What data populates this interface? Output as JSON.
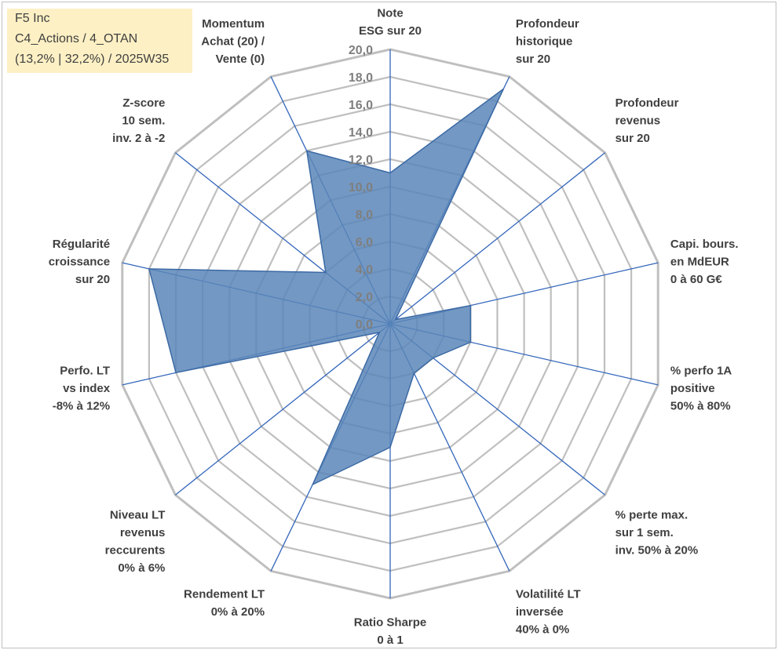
{
  "header": {
    "company": "F5 Inc",
    "category": "C4_Actions / 4_OTAN",
    "summary": "(13,2% | 32,2%) / 2025W35"
  },
  "colors": {
    "fill": "#5b86b8",
    "edge": "#3c6aa5",
    "axis": "#3366bb",
    "grid": "#bfbfbf",
    "box": "#fdf0c4"
  },
  "chart_data": {
    "type": "radar",
    "title": "",
    "rmin": 0,
    "rmax": 20,
    "tick_step": 2,
    "tick_labels": [
      "0,0",
      "2,0",
      "4,0",
      "6,0",
      "8,0",
      "10,0",
      "12,0",
      "14,0",
      "16,0",
      "18,0",
      "20,0"
    ],
    "grid": true,
    "axes": [
      {
        "label": [
          "Note",
          "ESG sur 20"
        ],
        "value": 11
      },
      {
        "label": [
          "Profondeur",
          "historique",
          "sur 20"
        ],
        "value": 19
      },
      {
        "label": [
          "Profondeur",
          "revenus",
          "sur 20"
        ],
        "value": 0.5
      },
      {
        "label": [
          "Capi. bours.",
          "en MdEUR",
          "0 à 60 G€"
        ],
        "value": 6
      },
      {
        "label": [
          "% perfo 1A",
          "positive",
          "50% à 80%"
        ],
        "value": 6
      },
      {
        "label": [
          "% perte max.",
          "sur 1 sem.",
          "inv. 50% à 20%"
        ],
        "value": 4
      },
      {
        "label": [
          "Volatilité LT",
          "inversée",
          "40% à 0%"
        ],
        "value": 4
      },
      {
        "label": [
          "Ratio Sharpe",
          "0 à 1"
        ],
        "value": 9
      },
      {
        "label": [
          "Rendement LT",
          "0% à 20%"
        ],
        "value": 13
      },
      {
        "label": [
          "Niveau LT",
          "revenus",
          "reccurents",
          "0% à 6%"
        ],
        "value": 1
      },
      {
        "label": [
          "Perfo. LT",
          "vs index",
          "-8% à 12%"
        ],
        "value": 16
      },
      {
        "label": [
          "Régularité",
          "croissance",
          "sur 20"
        ],
        "value": 18
      },
      {
        "label": [
          "Z-score",
          "10 sem.",
          "inv. 2 à -2"
        ],
        "value": 6
      },
      {
        "label": [
          "Momentum",
          "Achat (20) /",
          "Vente (0)"
        ],
        "value": 14
      }
    ]
  }
}
